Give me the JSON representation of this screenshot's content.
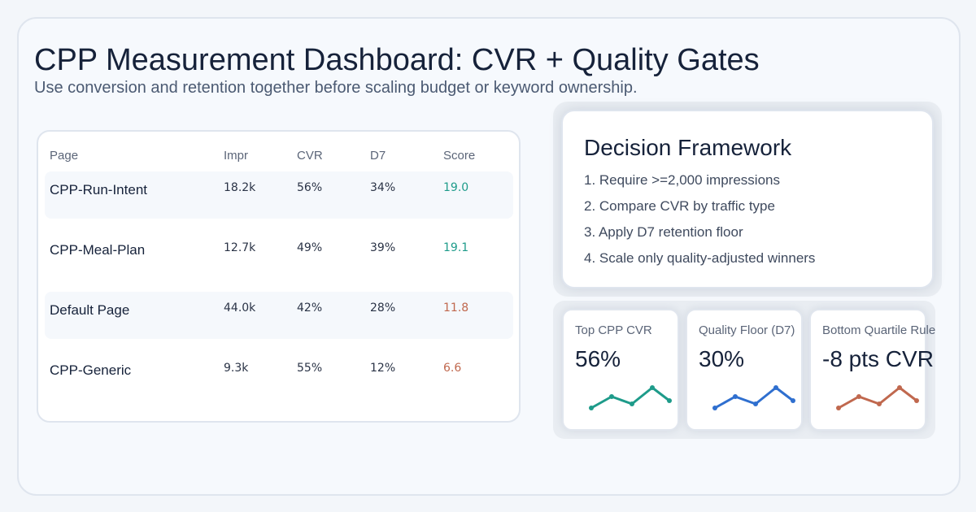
{
  "header": {
    "title": "CPP Measurement Dashboard: CVR + Quality Gates",
    "subtitle": "Use conversion and retention together before scaling budget or keyword ownership."
  },
  "table": {
    "columns": [
      "Page",
      "Impr",
      "CVR",
      "D7",
      "Score"
    ],
    "rows": [
      {
        "page": "CPP-Run-Intent",
        "impr": "18.2k",
        "cvr": "56%",
        "d7": "34%",
        "score": "19.0",
        "score_status": "good"
      },
      {
        "page": "CPP-Meal-Plan",
        "impr": "12.7k",
        "cvr": "49%",
        "d7": "39%",
        "score": "19.1",
        "score_status": "good"
      },
      {
        "page": "Default Page",
        "impr": "44.0k",
        "cvr": "42%",
        "d7": "28%",
        "score": "11.8",
        "score_status": "bad"
      },
      {
        "page": "CPP-Generic",
        "impr": "9.3k",
        "cvr": "55%",
        "d7": "12%",
        "score": "6.6",
        "score_status": "bad"
      }
    ]
  },
  "framework": {
    "title": "Decision Framework",
    "items": [
      "1. Require >=2,000 impressions",
      "2. Compare CVR by traffic type",
      "3. Apply D7 retention floor",
      "4. Scale only quality-adjusted winners"
    ]
  },
  "metrics": [
    {
      "label": "Top CPP CVR",
      "value": "56%",
      "color": "#1e9b8a"
    },
    {
      "label": "Quality Floor (D7)",
      "value": "30%",
      "color": "#2f6fcf"
    },
    {
      "label": "Bottom Quartile Rule",
      "value": "-8 pts CVR",
      "color": "#c0684e"
    }
  ],
  "colors": {
    "score_good": "#1e9b8a",
    "score_bad": "#c0684e"
  }
}
